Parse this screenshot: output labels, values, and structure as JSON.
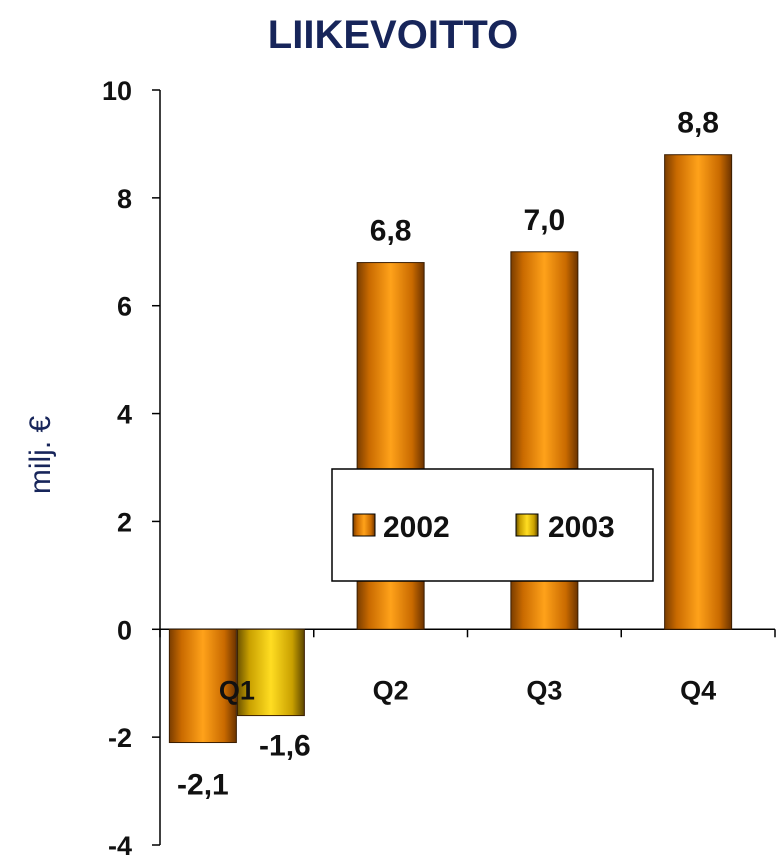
{
  "chart_data": {
    "type": "bar",
    "title": "LIIKEVOITTO",
    "ylabel": "milj. €",
    "xlabel": "",
    "ylim": [
      -4,
      10
    ],
    "yticks": [
      10,
      8,
      6,
      4,
      2,
      0,
      -2,
      -4
    ],
    "categories": [
      "Q1",
      "Q2",
      "Q3",
      "Q4"
    ],
    "series": [
      {
        "name": "2002",
        "values": [
          -2.1,
          6.8,
          7.0,
          8.8
        ],
        "labels": [
          "-2,1",
          "6,8",
          "7,0",
          "8,8"
        ],
        "color": "#ff9900"
      },
      {
        "name": "2003",
        "values": [
          -1.6,
          null,
          null,
          null
        ],
        "labels": [
          "-1,6",
          "",
          "",
          ""
        ],
        "color": "#ffcc00"
      }
    ],
    "legend": "center-right",
    "grid": false
  }
}
